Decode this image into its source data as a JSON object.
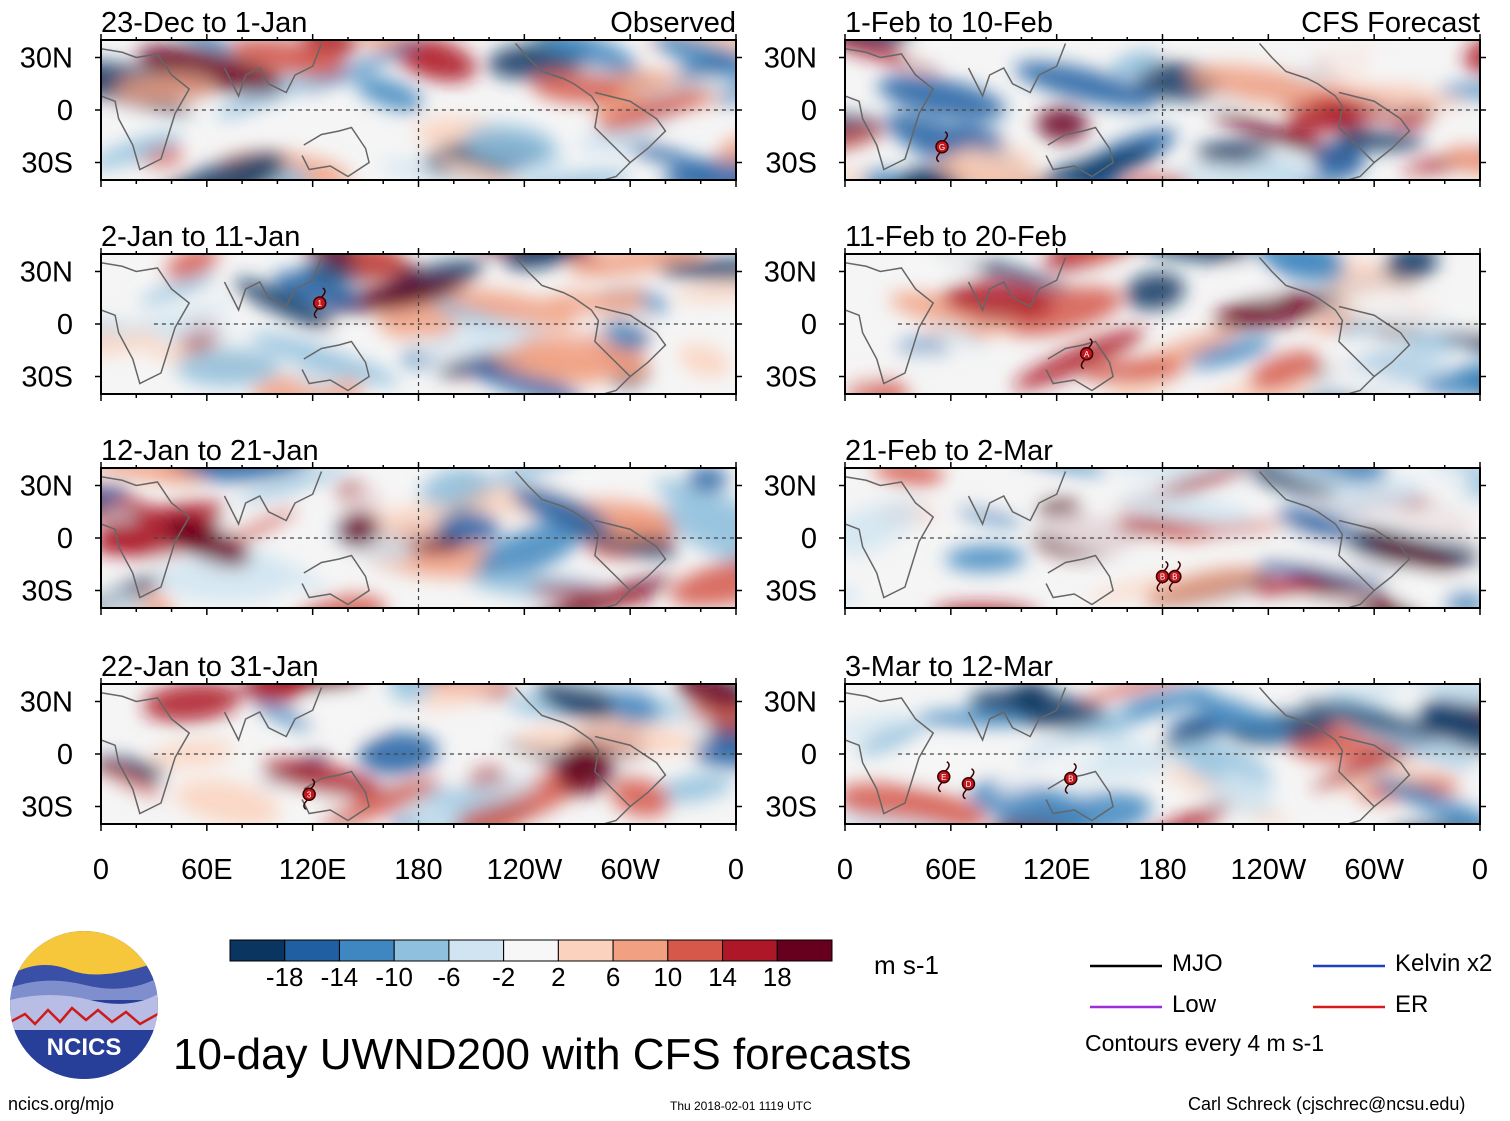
{
  "chart_data": {
    "type": "heatmap",
    "title": "10-day UWND200 with CFS forecasts",
    "variable": "UWND200",
    "units": "m s-1",
    "contour_note": "Contours every 4 m s-1",
    "colorbar": {
      "ticks": [
        "-18",
        "-14",
        "-10",
        "-6",
        "-2",
        "2",
        "6",
        "10",
        "14",
        "18"
      ],
      "colors": [
        "#0a3560",
        "#1f5fa2",
        "#3f87c0",
        "#8fc0dd",
        "#d0e5f1",
        "#f7f7f7",
        "#fbd2bd",
        "#f1a081",
        "#d5584b",
        "#ad1727",
        "#67001f"
      ]
    },
    "lat_labels": [
      "30N",
      "0",
      "30S"
    ],
    "lon_labels": [
      "0",
      "60E",
      "120E",
      "180",
      "120W",
      "60W",
      "0"
    ],
    "columns": {
      "left": "Observed",
      "right": "CFS Forecast"
    },
    "panels": [
      {
        "period": "23-Dec to 1-Jan",
        "source": "Observed",
        "storms": []
      },
      {
        "period": "2-Jan to 11-Jan",
        "source": "Observed",
        "storms": [
          {
            "label": "1",
            "lon": 124,
            "lat": 12
          }
        ]
      },
      {
        "period": "12-Jan to 21-Jan",
        "source": "Observed",
        "storms": []
      },
      {
        "period": "22-Jan to 31-Jan",
        "source": "Observed",
        "storms": [
          {
            "label": "3",
            "lon": 118,
            "lat": -23
          }
        ]
      },
      {
        "period": "1-Feb to 10-Feb",
        "source": "CFS Forecast",
        "storms": [
          {
            "label": "G",
            "lon": 55,
            "lat": -21
          }
        ]
      },
      {
        "period": "11-Feb to 20-Feb",
        "source": "CFS Forecast",
        "storms": [
          {
            "label": "A",
            "lon": 137,
            "lat": -17
          }
        ]
      },
      {
        "period": "21-Feb to 2-Mar",
        "source": "CFS Forecast",
        "storms": [
          {
            "label": "B",
            "lon": 180,
            "lat": -22
          },
          {
            "label": "B",
            "lon": 187,
            "lat": -22
          }
        ]
      },
      {
        "period": "3-Mar to 12-Mar",
        "source": "CFS Forecast",
        "storms": [
          {
            "label": "E",
            "lon": 56,
            "lat": -13
          },
          {
            "label": "D",
            "lon": 70,
            "lat": -17
          },
          {
            "label": "B",
            "lon": 128,
            "lat": -14
          }
        ]
      }
    ],
    "legend": [
      {
        "label": "MJO",
        "color": "#000000"
      },
      {
        "label": "Kelvin x2",
        "color": "#1f3fbf"
      },
      {
        "label": "Low",
        "color": "#9b30d9"
      },
      {
        "label": "ER",
        "color": "#d41a1a"
      }
    ]
  },
  "logo": {
    "text": "NCICS"
  },
  "footer": {
    "url": "ncics.org/mjo",
    "timestamp": "Thu 2018-02-01 1119 UTC",
    "author": "Carl Schreck (cjschrec@ncsu.edu)"
  }
}
